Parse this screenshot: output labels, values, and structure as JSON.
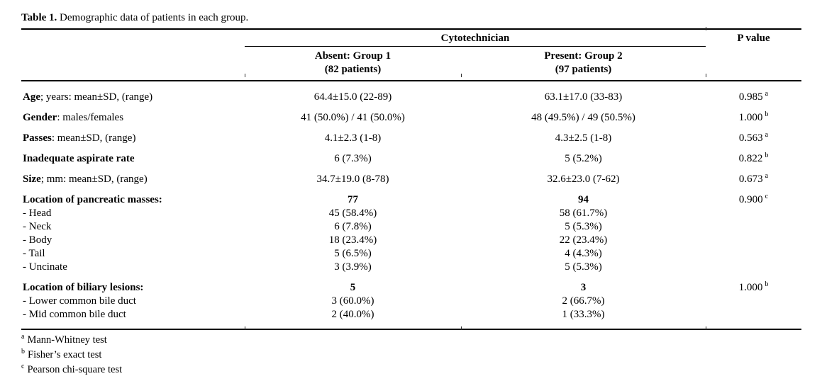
{
  "page": {
    "title_bold": "Table 1.",
    "title_rest": " Demographic data of patients in each group."
  },
  "header": {
    "span": "Cytotechnician",
    "p": "P value",
    "groups": [
      {
        "line1": "Absent: Group 1",
        "line2": "(82 patients)"
      },
      {
        "line1": "Present: Group 2",
        "line2": "(97 patients)"
      }
    ]
  },
  "rows": [
    {
      "b": "Age",
      "r": "; years: mean±SD, (range)",
      "g1": "64.4±15.0 (22-89)",
      "g2": "63.1±17.0 (33-83)",
      "p": "0.985",
      "ps": "a"
    },
    {
      "b": "Gender",
      "r": ": males/females",
      "g1": "41 (50.0%) / 41 (50.0%)",
      "g2": "48 (49.5%) / 49 (50.5%)",
      "p": "1.000",
      "ps": "b"
    },
    {
      "b": "Passes",
      "r": ": mean±SD, (range)",
      "g1": "4.1±2.3 (1-8)",
      "g2": "4.3±2.5 (1-8)",
      "p": "0.563",
      "ps": "a"
    },
    {
      "b": "Inadequate aspirate rate",
      "r": "",
      "g1": "6 (7.3%)",
      "g2": "5 (5.2%)",
      "p": "0.822",
      "ps": "b"
    },
    {
      "b": "Size",
      "r": "; mm: mean±SD, (range)",
      "g1": "34.7±19.0 (8-78)",
      "g2": "32.6±23.0 (7-62)",
      "p": "0.673",
      "ps": "a"
    },
    {
      "b": "Location of pancreatic masses:",
      "r": "",
      "g1": "77",
      "g2": "94",
      "p": "0.900",
      "ps": "c"
    },
    {
      "b": "",
      "r": "- Head",
      "g1": "45 (58.4%)",
      "g2": "58 (61.7%)",
      "p": "",
      "ps": ""
    },
    {
      "b": "",
      "r": "- Neck",
      "g1": "6 (7.8%)",
      "g2": "5 (5.3%)",
      "p": "",
      "ps": ""
    },
    {
      "b": "",
      "r": "- Body",
      "g1": "18 (23.4%)",
      "g2": "22 (23.4%)",
      "p": "",
      "ps": ""
    },
    {
      "b": "",
      "r": "- Tail",
      "g1": "5 (6.5%)",
      "g2": "4 (4.3%)",
      "p": "",
      "ps": ""
    },
    {
      "b": "",
      "r": "- Uncinate",
      "g1": "3 (3.9%)",
      "g2": "5 (5.3%)",
      "p": "",
      "ps": ""
    },
    {
      "b": "Location of biliary lesions:",
      "r": "",
      "g1": "5",
      "g2": "3",
      "p": "1.000",
      "ps": "b"
    },
    {
      "b": "",
      "r": "- Lower common bile duct",
      "g1": "3 (60.0%)",
      "g2": "2 (66.7%)",
      "p": "",
      "ps": ""
    },
    {
      "b": "",
      "r": "- Mid common bile duct",
      "g1": "2 (40.0%)",
      "g2": "1 (33.3%)",
      "p": "",
      "ps": ""
    }
  ],
  "footnotes": [
    {
      "sup": "a",
      "text": "Mann-Whitney test"
    },
    {
      "sup": "b",
      "text": "Fisher’s exact test"
    },
    {
      "sup": "c",
      "text": "Pearson chi-square test"
    }
  ]
}
